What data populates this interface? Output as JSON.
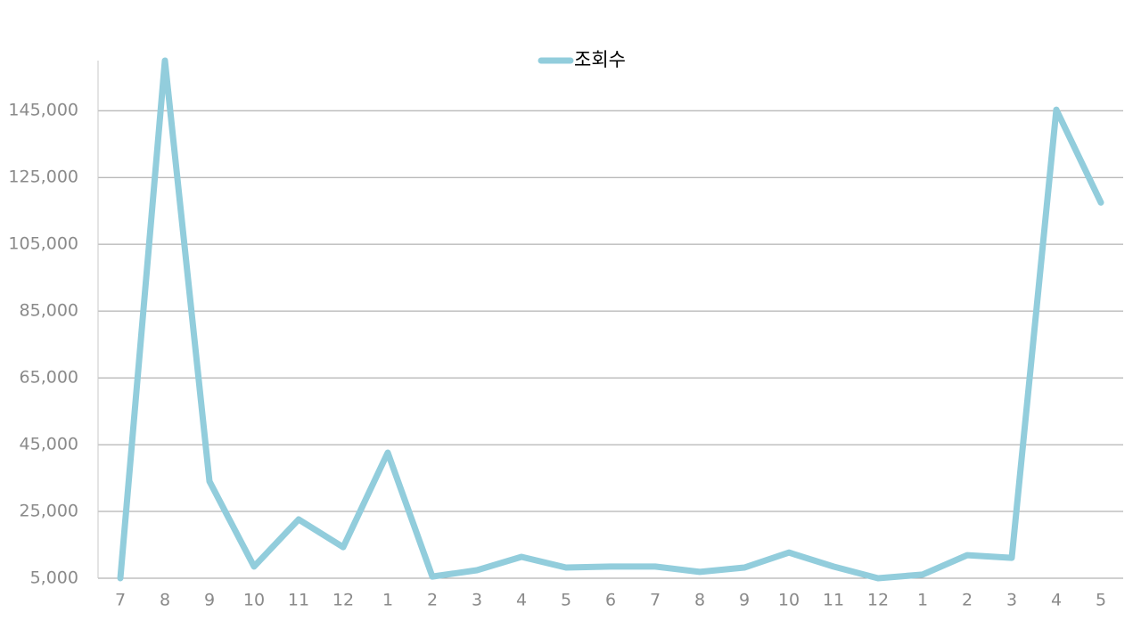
{
  "chart_data": {
    "type": "line",
    "categories": [
      "7",
      "8",
      "9",
      "10",
      "11",
      "12",
      "1",
      "2",
      "3",
      "4",
      "5",
      "6",
      "7",
      "8",
      "9",
      "10",
      "11",
      "12",
      "1",
      "2",
      "3",
      "4",
      "5"
    ],
    "series": [
      {
        "name": "조회수",
        "color": "#92cddc",
        "values": [
          5000,
          160000,
          34000,
          8500,
          22600,
          14300,
          42600,
          5500,
          7400,
          11400,
          8200,
          8500,
          8500,
          6900,
          8200,
          12700,
          8500,
          5000,
          6100,
          11900,
          11100,
          145300,
          117500
        ]
      }
    ],
    "ylim": [
      5000,
      160000
    ],
    "yticks": [
      {
        "value": 5000,
        "label": "5,000"
      },
      {
        "value": 25000,
        "label": "25,000"
      },
      {
        "value": 45000,
        "label": "45,000"
      },
      {
        "value": 65000,
        "label": "65,000"
      },
      {
        "value": 85000,
        "label": "85,000"
      },
      {
        "value": 105000,
        "label": "105,000"
      },
      {
        "value": 125000,
        "label": "125,000"
      },
      {
        "value": 145000,
        "label": "145,000"
      }
    ],
    "grid": true,
    "legend": "top"
  }
}
